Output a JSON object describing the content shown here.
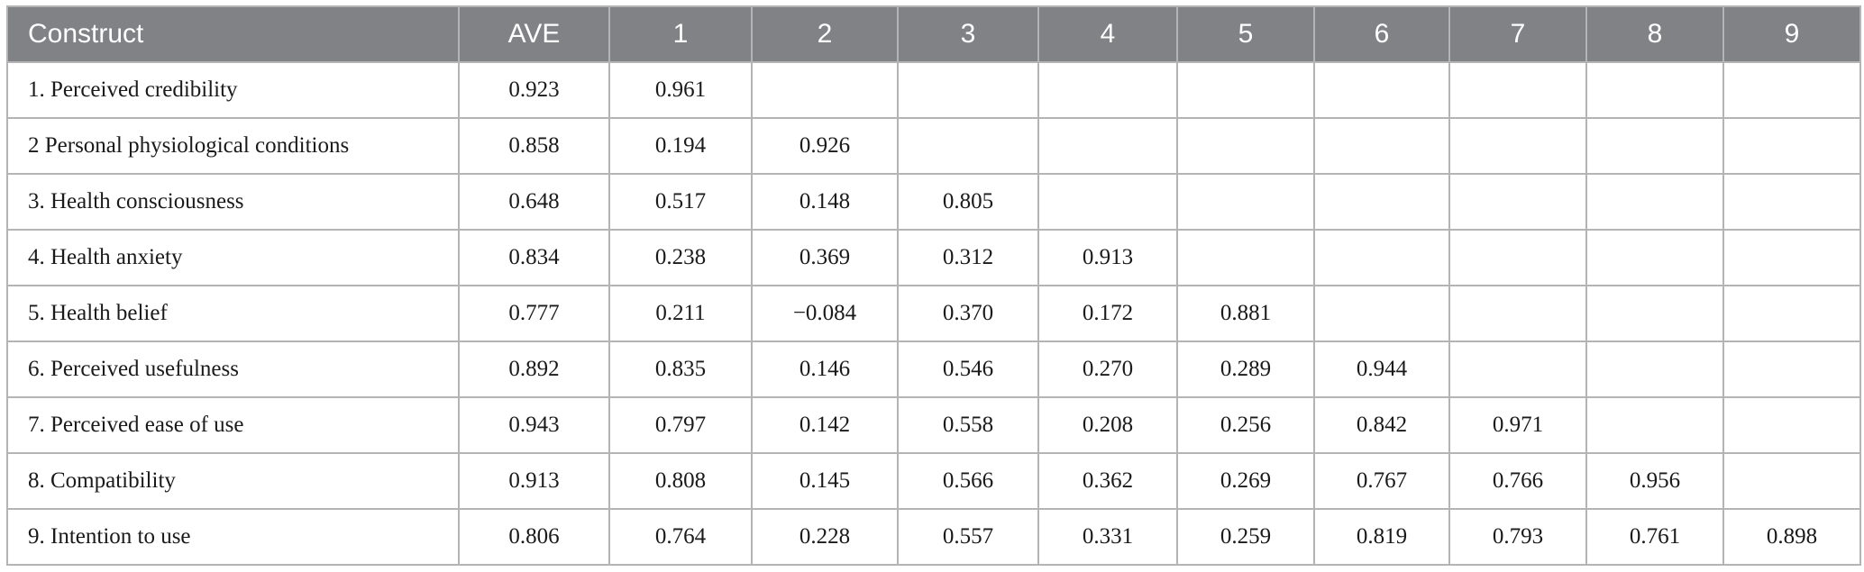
{
  "table": {
    "header": [
      "Construct",
      "AVE",
      "1",
      "2",
      "3",
      "4",
      "5",
      "6",
      "7",
      "8",
      "9"
    ],
    "rows": [
      [
        "1. Perceived credibility",
        "0.923",
        "0.961"
      ],
      [
        "2 Personal physiological conditions",
        "0.858",
        "0.194",
        "0.926"
      ],
      [
        "3. Health consciousness",
        "0.648",
        "0.517",
        "0.148",
        "0.805"
      ],
      [
        "4. Health anxiety",
        "0.834",
        "0.238",
        "0.369",
        "0.312",
        "0.913"
      ],
      [
        "5. Health belief",
        "0.777",
        "0.211",
        "−0.084",
        "0.370",
        "0.172",
        "0.881"
      ],
      [
        "6. Perceived usefulness",
        "0.892",
        "0.835",
        "0.146",
        "0.546",
        "0.270",
        "0.289",
        "0.944"
      ],
      [
        "7. Perceived ease of use",
        "0.943",
        "0.797",
        "0.142",
        "0.558",
        "0.208",
        "0.256",
        "0.842",
        "0.971"
      ],
      [
        "8. Compatibility",
        "0.913",
        "0.808",
        "0.145",
        "0.566",
        "0.362",
        "0.269",
        "0.767",
        "0.766",
        "0.956"
      ],
      [
        "9. Intention to use",
        "0.806",
        "0.764",
        "0.228",
        "0.557",
        "0.331",
        "0.259",
        "0.819",
        "0.793",
        "0.761",
        "0.898"
      ]
    ]
  }
}
